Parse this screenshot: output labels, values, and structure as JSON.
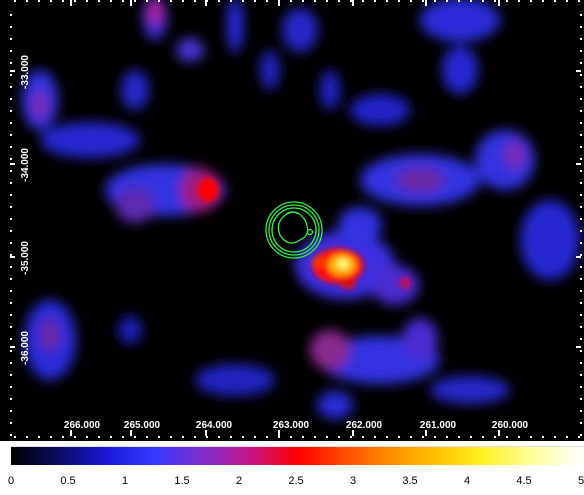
{
  "image": {
    "ra_labels": [
      "266.000",
      "265.000",
      "264.000",
      "263.000",
      "262.000",
      "261.000",
      "260.000"
    ],
    "dec_labels": [
      "-33.000",
      "-34.000",
      "-35.000",
      "-36.000"
    ]
  },
  "colorbar": {
    "labels": [
      "0",
      "0.5",
      "1",
      "1.5",
      "2",
      "2.5",
      "3",
      "3.5",
      "4",
      "4.5",
      "5"
    ]
  },
  "colors": {
    "background": "#000000",
    "contour": "#33ee44",
    "grid_ticks": "#ffffff"
  }
}
